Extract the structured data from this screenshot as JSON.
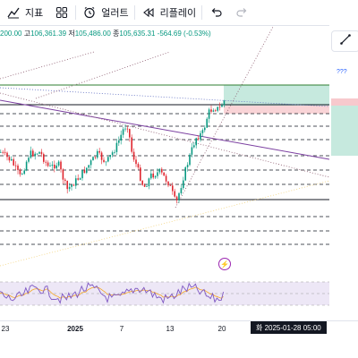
{
  "toolbar": {
    "indicators_label": "지표",
    "alerts_label": "얼러트",
    "replay_label": "리플레이"
  },
  "ohlc": {
    "open_text": "200.00",
    "high_prefix": "고",
    "high_value": "106,361.39",
    "low_prefix": "저",
    "low_value": "105,486.00",
    "close_prefix": "종",
    "close_value": "105,635.31",
    "change_text": "-564.69 (-0.53%)"
  },
  "right_panel": {
    "question_marks": "???"
  },
  "time_axis": {
    "labels": [
      "23",
      "2025",
      "7",
      "13",
      "20"
    ],
    "crosshair_date": "화 2025-01-28   05:00"
  },
  "colors": {
    "candle_up": "#089981",
    "candle_down": "#e0262f",
    "price_line": "#131722",
    "long_profit": "#b8e4d6",
    "long_loss": "#f7c9cd",
    "rsi_band": "#ede7f6",
    "rsi_line": "#7e57c2",
    "rsi_signal": "#f5a623",
    "trend_purple": "#7b3fa0",
    "trend_dotted": "#8c5a6e"
  },
  "icons": {
    "indicators": "chart-line-icon",
    "layouts": "grid-icon",
    "alerts": "alarm-clock-icon",
    "replay": "rewind-icon",
    "undo": "undo-icon",
    "redo": "redo-icon",
    "alert_marker": "lightning-icon",
    "trendline_tool": "trendline-icon"
  }
}
